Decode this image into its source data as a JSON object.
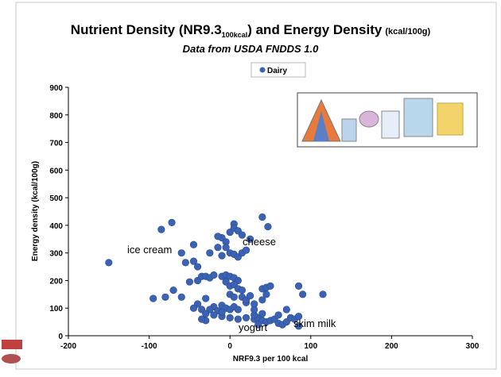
{
  "chart_data": {
    "type": "scatter",
    "title": [
      "Nutrient Density (NR9.3",
      "100kcal",
      ") and Energy Density",
      "(kcal/100g)"
    ],
    "subtitle": "Data from USDA FNDDS 1.0",
    "x_label": "NRF9.3 per 100 kcal",
    "y_label": "Energy density (kcal/100g)",
    "xlim": [
      -200,
      300
    ],
    "xticks": [
      -200,
      -100,
      0,
      100,
      200,
      300
    ],
    "ylim": [
      0,
      900
    ],
    "yticks": [
      0,
      100,
      200,
      300,
      400,
      500,
      600,
      700,
      800,
      900
    ],
    "annotations": [
      "ice cream",
      "cheese",
      "yogurt",
      "skim milk"
    ],
    "series": [
      {
        "name": "Dairy",
        "color": "#3c63b3",
        "x": [
          -150,
          -85,
          -72,
          -60,
          -55,
          -45,
          -45,
          -40,
          -70,
          -95,
          -80,
          -60,
          -50,
          -40,
          -35,
          -30,
          -25,
          -20,
          -15,
          -25,
          -10,
          -10,
          -5,
          -15,
          0,
          5,
          5,
          10,
          -5,
          0,
          5,
          10,
          15,
          20,
          25,
          15,
          -10,
          -5,
          0,
          5,
          10,
          -5,
          0,
          5,
          10,
          15,
          0,
          5,
          15,
          20,
          -30,
          -40,
          -20,
          -10,
          -5,
          0,
          5,
          10,
          -45,
          -35,
          -25,
          -15,
          -30,
          -20,
          -10,
          0,
          10,
          20,
          30,
          35,
          40,
          45,
          50,
          55,
          60,
          65,
          70,
          75,
          80,
          30,
          40,
          30,
          -30,
          -10,
          30,
          40,
          45,
          40,
          45,
          50,
          85,
          90,
          115,
          70,
          85,
          40,
          47,
          -35,
          20,
          25,
          35,
          60,
          85
        ],
        "values": [
          265,
          385,
          410,
          300,
          265,
          330,
          270,
          250,
          165,
          135,
          140,
          140,
          195,
          200,
          215,
          215,
          210,
          220,
          320,
          300,
          290,
          355,
          340,
          360,
          375,
          405,
          390,
          380,
          320,
          300,
          295,
          285,
          300,
          310,
          350,
          365,
          215,
          220,
          215,
          210,
          200,
          195,
          180,
          185,
          170,
          165,
          150,
          140,
          140,
          120,
          135,
          115,
          105,
          110,
          100,
          95,
          105,
          95,
          100,
          95,
          95,
          90,
          80,
          75,
          70,
          65,
          60,
          65,
          60,
          65,
          55,
          50,
          55,
          60,
          45,
          40,
          50,
          65,
          60,
          75,
          80,
          95,
          55,
          85,
          115,
          130,
          150,
          170,
          175,
          180,
          180,
          150,
          150,
          95,
          70,
          430,
          395,
          60,
          130,
          145,
          40,
          75,
          35
        ]
      }
    ]
  }
}
